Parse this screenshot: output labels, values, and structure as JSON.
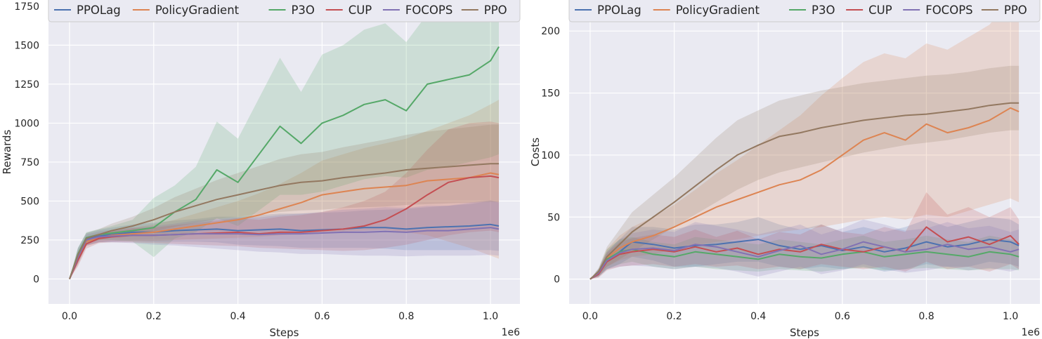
{
  "colors": {
    "PPOLag": "#4c72b0",
    "PolicyGradient": "#dd8452",
    "P3O": "#55a868",
    "CUP": "#c44e52",
    "FOCOPS": "#8172b3",
    "PPO": "#937860",
    "plot_bg": "#eaeaf2",
    "grid": "#ffffff"
  },
  "chart_data": [
    {
      "type": "line",
      "xlabel": "Steps",
      "ylabel": "Rewards",
      "x_offset_label": "1e6",
      "xlim": [
        -0.05,
        1.07
      ],
      "ylim": [
        -160,
        1790
      ],
      "x_ticks": [
        0.0,
        0.2,
        0.4,
        0.6,
        0.8,
        1.0
      ],
      "x_tick_labels": [
        "0.0",
        "0.2",
        "0.4",
        "0.6",
        "0.8",
        "1.0"
      ],
      "y_ticks": [
        0,
        250,
        500,
        750,
        1000,
        1250,
        1500,
        1750
      ],
      "y_tick_labels": [
        "0",
        "250",
        "500",
        "750",
        "1000",
        "1250",
        "1500",
        "1750"
      ],
      "grid": true,
      "legend_position": "top",
      "shaded_bands": true,
      "x": [
        0,
        0.02,
        0.04,
        0.07,
        0.1,
        0.15,
        0.2,
        0.25,
        0.3,
        0.35,
        0.4,
        0.45,
        0.5,
        0.55,
        0.6,
        0.65,
        0.7,
        0.75,
        0.8,
        0.85,
        0.9,
        0.95,
        1.0,
        1.02
      ],
      "series": [
        {
          "name": "PPOLag",
          "values": [
            0,
            150,
            255,
            275,
            285,
            300,
            300,
            310,
            315,
            320,
            310,
            315,
            320,
            310,
            315,
            320,
            330,
            330,
            320,
            330,
            335,
            340,
            350,
            340
          ],
          "lower": [
            0,
            100,
            215,
            235,
            240,
            245,
            240,
            240,
            240,
            235,
            220,
            215,
            210,
            200,
            200,
            200,
            200,
            195,
            185,
            185,
            185,
            185,
            185,
            180
          ],
          "upper": [
            0,
            200,
            295,
            315,
            330,
            350,
            360,
            375,
            385,
            400,
            400,
            410,
            420,
            420,
            425,
            430,
            440,
            445,
            450,
            460,
            470,
            480,
            500,
            500
          ]
        },
        {
          "name": "PolicyGradient",
          "values": [
            0,
            130,
            240,
            265,
            280,
            290,
            300,
            320,
            340,
            360,
            380,
            410,
            450,
            490,
            540,
            560,
            580,
            590,
            600,
            630,
            640,
            650,
            680,
            670
          ],
          "lower": [
            0,
            90,
            210,
            235,
            245,
            245,
            245,
            250,
            255,
            260,
            265,
            270,
            280,
            290,
            300,
            305,
            310,
            315,
            300,
            280,
            240,
            200,
            150,
            130
          ],
          "upper": [
            0,
            170,
            270,
            295,
            310,
            330,
            350,
            380,
            420,
            460,
            500,
            550,
            610,
            680,
            760,
            800,
            840,
            870,
            900,
            950,
            1000,
            1050,
            1120,
            1150
          ]
        },
        {
          "name": "P3O",
          "values": [
            0,
            160,
            265,
            285,
            295,
            310,
            330,
            430,
            510,
            700,
            620,
            800,
            980,
            870,
            1000,
            1050,
            1120,
            1150,
            1080,
            1250,
            1280,
            1310,
            1400,
            1490
          ],
          "lower": [
            0,
            120,
            230,
            250,
            250,
            240,
            140,
            260,
            300,
            390,
            340,
            440,
            540,
            540,
            560,
            600,
            640,
            660,
            650,
            700,
            720,
            750,
            780,
            800
          ],
          "upper": [
            0,
            200,
            300,
            320,
            340,
            380,
            520,
            600,
            720,
            1010,
            900,
            1160,
            1420,
            1200,
            1440,
            1500,
            1600,
            1640,
            1520,
            1700,
            1720,
            1740,
            1760,
            1790
          ]
        },
        {
          "name": "CUP",
          "values": [
            0,
            120,
            225,
            260,
            270,
            280,
            280,
            285,
            290,
            295,
            300,
            290,
            300,
            300,
            310,
            320,
            340,
            380,
            450,
            540,
            620,
            650,
            660,
            650
          ],
          "lower": [
            0,
            80,
            195,
            230,
            235,
            235,
            230,
            225,
            220,
            215,
            210,
            200,
            195,
            190,
            185,
            180,
            185,
            200,
            220,
            250,
            280,
            300,
            310,
            300
          ],
          "upper": [
            0,
            160,
            255,
            290,
            305,
            325,
            330,
            345,
            360,
            375,
            390,
            380,
            400,
            410,
            430,
            460,
            500,
            560,
            680,
            830,
            960,
            1000,
            1010,
            1000
          ]
        },
        {
          "name": "FOCOPS",
          "values": [
            0,
            140,
            250,
            270,
            275,
            280,
            280,
            285,
            290,
            290,
            290,
            285,
            290,
            290,
            295,
            300,
            300,
            305,
            300,
            310,
            310,
            320,
            330,
            320
          ],
          "lower": [
            0,
            100,
            215,
            235,
            235,
            230,
            220,
            215,
            205,
            195,
            185,
            175,
            170,
            160,
            160,
            155,
            150,
            150,
            145,
            150,
            150,
            150,
            155,
            150
          ],
          "upper": [
            0,
            180,
            285,
            305,
            315,
            330,
            340,
            355,
            375,
            385,
            395,
            395,
            410,
            420,
            430,
            445,
            450,
            460,
            455,
            470,
            470,
            490,
            505,
            490
          ]
        },
        {
          "name": "PPO",
          "values": [
            0,
            155,
            260,
            285,
            310,
            340,
            380,
            430,
            470,
            510,
            540,
            570,
            600,
            620,
            630,
            650,
            665,
            680,
            700,
            710,
            720,
            730,
            740,
            740
          ],
          "lower": [
            0,
            115,
            225,
            250,
            265,
            285,
            305,
            335,
            360,
            385,
            400,
            415,
            430,
            440,
            445,
            455,
            460,
            465,
            475,
            480,
            485,
            490,
            495,
            495
          ],
          "upper": [
            0,
            195,
            295,
            320,
            355,
            400,
            455,
            525,
            580,
            635,
            680,
            725,
            770,
            800,
            815,
            845,
            870,
            895,
            925,
            945,
            960,
            975,
            990,
            990
          ]
        }
      ]
    },
    {
      "type": "line",
      "xlabel": "Steps",
      "ylabel": "Costs",
      "x_offset_label": "1e6",
      "xlim": [
        -0.05,
        1.07
      ],
      "ylim": [
        -20,
        225
      ],
      "x_ticks": [
        0.0,
        0.2,
        0.4,
        0.6,
        0.8,
        1.0
      ],
      "x_tick_labels": [
        "0.0",
        "0.2",
        "0.4",
        "0.6",
        "0.8",
        "1.0"
      ],
      "y_ticks": [
        0,
        50,
        100,
        150,
        200
      ],
      "y_tick_labels": [
        "0",
        "50",
        "100",
        "150",
        "200"
      ],
      "grid": true,
      "legend_position": "top",
      "shaded_bands": true,
      "x": [
        0,
        0.02,
        0.04,
        0.07,
        0.1,
        0.15,
        0.2,
        0.25,
        0.3,
        0.35,
        0.4,
        0.45,
        0.5,
        0.55,
        0.6,
        0.65,
        0.7,
        0.75,
        0.8,
        0.85,
        0.9,
        0.95,
        1.0,
        1.02
      ],
      "series": [
        {
          "name": "PPOLag",
          "values": [
            0,
            5,
            15,
            22,
            30,
            28,
            25,
            27,
            28,
            30,
            32,
            27,
            24,
            27,
            23,
            26,
            22,
            25,
            30,
            26,
            28,
            32,
            30,
            27
          ],
          "lower": [
            0,
            2,
            8,
            12,
            18,
            15,
            10,
            10,
            12,
            14,
            14,
            10,
            8,
            10,
            8,
            10,
            6,
            8,
            12,
            10,
            10,
            14,
            12,
            10
          ],
          "upper": [
            0,
            8,
            22,
            32,
            42,
            42,
            40,
            44,
            44,
            46,
            50,
            44,
            40,
            44,
            38,
            42,
            38,
            42,
            48,
            42,
            46,
            50,
            48,
            44
          ]
        },
        {
          "name": "PolicyGradient",
          "values": [
            0,
            5,
            17,
            25,
            30,
            35,
            42,
            50,
            58,
            64,
            70,
            76,
            80,
            88,
            100,
            112,
            118,
            112,
            125,
            118,
            122,
            128,
            138,
            135
          ],
          "lower": [
            0,
            2,
            10,
            15,
            18,
            20,
            24,
            27,
            30,
            32,
            35,
            38,
            40,
            42,
            45,
            48,
            50,
            48,
            52,
            50,
            55,
            60,
            65,
            62
          ],
          "upper": [
            0,
            8,
            24,
            35,
            42,
            50,
            60,
            72,
            85,
            96,
            108,
            120,
            132,
            148,
            162,
            175,
            182,
            178,
            190,
            185,
            195,
            205,
            225,
            220
          ]
        },
        {
          "name": "P3O",
          "values": [
            0,
            5,
            16,
            22,
            24,
            20,
            18,
            22,
            20,
            18,
            16,
            20,
            18,
            17,
            20,
            22,
            18,
            20,
            22,
            20,
            18,
            22,
            20,
            18
          ],
          "lower": [
            0,
            2,
            8,
            12,
            14,
            10,
            8,
            10,
            8,
            7,
            6,
            8,
            7,
            6,
            8,
            9,
            7,
            8,
            9,
            8,
            7,
            8,
            8,
            7
          ],
          "upper": [
            0,
            8,
            24,
            32,
            34,
            30,
            28,
            34,
            32,
            30,
            28,
            32,
            30,
            28,
            32,
            35,
            30,
            32,
            35,
            32,
            30,
            35,
            32,
            30
          ]
        },
        {
          "name": "CUP",
          "values": [
            0,
            4,
            14,
            20,
            22,
            24,
            22,
            26,
            22,
            25,
            20,
            24,
            22,
            28,
            24,
            22,
            26,
            22,
            42,
            30,
            34,
            28,
            35,
            28
          ],
          "lower": [
            0,
            1,
            7,
            10,
            11,
            12,
            10,
            12,
            10,
            11,
            8,
            10,
            8,
            12,
            10,
            8,
            10,
            6,
            14,
            8,
            10,
            6,
            12,
            8
          ],
          "upper": [
            0,
            7,
            21,
            30,
            33,
            36,
            34,
            40,
            34,
            39,
            32,
            38,
            36,
            44,
            38,
            36,
            42,
            38,
            70,
            52,
            58,
            50,
            58,
            48
          ]
        },
        {
          "name": "FOCOPS",
          "values": [
            0,
            5,
            15,
            21,
            24,
            25,
            23,
            28,
            26,
            22,
            18,
            23,
            27,
            20,
            24,
            30,
            26,
            22,
            24,
            28,
            24,
            26,
            22,
            24
          ],
          "lower": [
            0,
            2,
            8,
            10,
            11,
            10,
            8,
            10,
            9,
            6,
            2,
            6,
            10,
            4,
            7,
            12,
            8,
            5,
            7,
            10,
            7,
            9,
            6,
            8
          ],
          "upper": [
            0,
            8,
            22,
            32,
            37,
            40,
            38,
            46,
            43,
            40,
            36,
            40,
            44,
            36,
            41,
            48,
            44,
            39,
            41,
            46,
            41,
            43,
            38,
            40
          ]
        },
        {
          "name": "PPO",
          "values": [
            0,
            6,
            18,
            28,
            38,
            50,
            62,
            75,
            88,
            100,
            108,
            115,
            118,
            122,
            125,
            128,
            130,
            132,
            133,
            135,
            137,
            140,
            142,
            142
          ],
          "lower": [
            0,
            3,
            10,
            16,
            22,
            32,
            42,
            52,
            62,
            72,
            80,
            86,
            90,
            94,
            98,
            102,
            105,
            108,
            110,
            112,
            115,
            118,
            120,
            120
          ],
          "upper": [
            0,
            9,
            26,
            40,
            54,
            68,
            82,
            98,
            114,
            128,
            136,
            144,
            148,
            152,
            155,
            158,
            160,
            162,
            164,
            165,
            167,
            170,
            172,
            172
          ]
        }
      ]
    }
  ]
}
